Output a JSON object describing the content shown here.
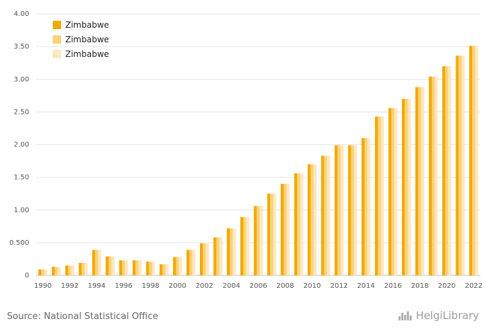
{
  "chart_data": {
    "type": "bar",
    "categories": [
      "1990",
      "1991",
      "1992",
      "1993",
      "1994",
      "1995",
      "1996",
      "1997",
      "1998",
      "1999",
      "2000",
      "2001",
      "2002",
      "2003",
      "2004",
      "2005",
      "2006",
      "2007",
      "2008",
      "2009",
      "2010",
      "2011",
      "2012",
      "2013",
      "2014",
      "2015",
      "2016",
      "2017",
      "2018",
      "2019",
      "2020",
      "2021",
      "2022"
    ],
    "x_tick_labels": [
      "1990",
      "1992",
      "1994",
      "1996",
      "1998",
      "2000",
      "2002",
      "2004",
      "2006",
      "2008",
      "2010",
      "2012",
      "2014",
      "2016",
      "2018",
      "2020",
      "2022"
    ],
    "y_tick_labels": [
      "0",
      "0.500",
      "1.00",
      "1.50",
      "2.00",
      "2.50",
      "3.00",
      "3.50",
      "4.00"
    ],
    "ylim": [
      0,
      4
    ],
    "grid": true,
    "legend_position": "top-left",
    "series": [
      {
        "name": "Zimbabwe",
        "color": "#f2aa00",
        "values": [
          0.09,
          0.13,
          0.15,
          0.19,
          0.39,
          0.29,
          0.23,
          0.23,
          0.21,
          0.17,
          0.28,
          0.39,
          0.49,
          0.58,
          0.72,
          0.89,
          1.06,
          1.25,
          1.4,
          1.56,
          1.7,
          1.83,
          1.99,
          1.99,
          2.1,
          2.43,
          2.56,
          2.7,
          2.88,
          3.04,
          3.2,
          3.36,
          3.51
        ]
      },
      {
        "name": "Zimbabwe",
        "color": "#fbd27a",
        "values": [
          0.09,
          0.13,
          0.15,
          0.19,
          0.39,
          0.29,
          0.23,
          0.23,
          0.21,
          0.17,
          0.28,
          0.39,
          0.49,
          0.58,
          0.72,
          0.89,
          1.06,
          1.25,
          1.4,
          1.56,
          1.7,
          1.83,
          1.99,
          1.99,
          2.1,
          2.43,
          2.56,
          2.7,
          2.88,
          3.04,
          3.2,
          3.36,
          3.51
        ]
      },
      {
        "name": "Zimbabwe",
        "color": "#fde8bf",
        "values": [
          0.09,
          0.13,
          0.15,
          0.19,
          0.39,
          0.29,
          0.23,
          0.23,
          0.21,
          0.17,
          0.28,
          0.39,
          0.49,
          0.58,
          0.72,
          0.89,
          1.06,
          1.25,
          1.4,
          1.56,
          1.7,
          1.83,
          1.99,
          1.99,
          2.1,
          2.43,
          2.56,
          2.7,
          2.88,
          3.04,
          3.2,
          3.36,
          3.51
        ]
      }
    ]
  },
  "footer": {
    "source": "Source: National Statistical Office",
    "brand": "HelgiLibrary"
  }
}
